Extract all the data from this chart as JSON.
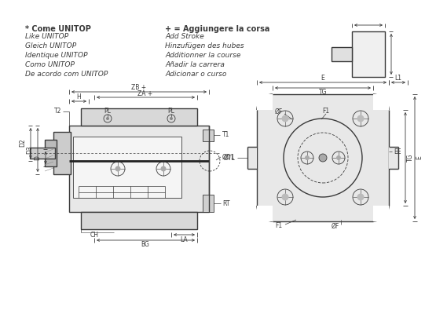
{
  "bg_color": "#ffffff",
  "line_color": "#3a3a3a",
  "text_color": "#3a3a3a",
  "title_text": "* Come UNITOP",
  "plus_text": "+ = Aggiungere la corsa",
  "italic_lines_left": [
    "Like UNITOP",
    "Gleich UNITOP",
    "Identique UNITOP",
    "Como UNITOP",
    "De acordo com UNITOP"
  ],
  "italic_lines_right": [
    "Add Stroke",
    "Hinzufügen des hubes",
    "Additionner la course",
    "Añadir la carrera",
    "Adicionar o curso"
  ]
}
